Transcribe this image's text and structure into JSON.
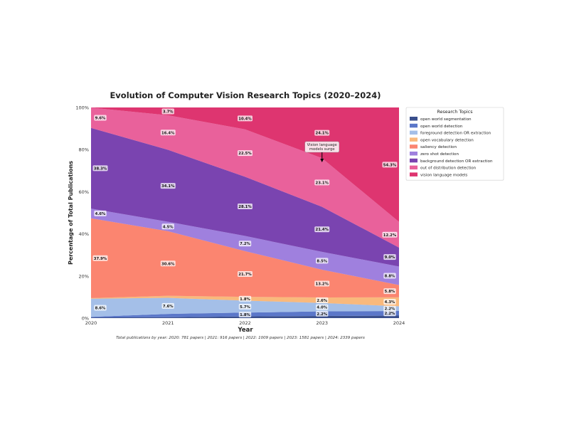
{
  "chart_data": {
    "type": "area",
    "stacked": true,
    "normalized": true,
    "title": "Evolution of Computer Vision Research Topics (2020–2024)",
    "xlabel": "Year",
    "ylabel": "Percentage of Total Publications",
    "x": [
      "2020",
      "2021",
      "2022",
      "2023",
      "2024"
    ],
    "ylim": [
      0,
      100
    ],
    "y_ticks": [
      "0%",
      "20%",
      "40%",
      "60%",
      "80%",
      "100%"
    ],
    "grid": true,
    "legend_title": "Research Topics",
    "legend_position": "outside-right",
    "series": [
      {
        "name": "open world segmentation",
        "color": "#3a4f8c",
        "values": [
          0.3,
          0.4,
          0.8,
          1.0,
          1.2
        ]
      },
      {
        "name": "open world detection",
        "color": "#5b77c9",
        "values": [
          0.3,
          1.6,
          1.8,
          2.2,
          2.2
        ]
      },
      {
        "name": "foreground detection OR extraction",
        "color": "#a4bfe8",
        "values": [
          8.6,
          7.6,
          5.7,
          4.0,
          2.2
        ]
      },
      {
        "name": "open vocabulary detection",
        "color": "#f9b97c",
        "values": [
          0.3,
          1.0,
          1.8,
          2.6,
          4.3
        ]
      },
      {
        "name": "saliency detection",
        "color": "#fb8570",
        "values": [
          37.9,
          30.6,
          21.7,
          13.2,
          5.8
        ]
      },
      {
        "name": "zero shot detection",
        "color": "#9f80de",
        "values": [
          4.6,
          4.5,
          7.2,
          8.5,
          8.8
        ]
      },
      {
        "name": "background detection OR extraction",
        "color": "#7a44b0",
        "values": [
          38.3,
          34.1,
          28.1,
          21.4,
          9.0
        ]
      },
      {
        "name": "out of distribution detection",
        "color": "#e9619b",
        "values": [
          9.6,
          16.4,
          22.5,
          23.1,
          12.2
        ]
      },
      {
        "name": "vision language models",
        "color": "#de3570",
        "values": [
          0.1,
          3.7,
          10.4,
          24.1,
          54.3
        ]
      }
    ],
    "data_labels": [
      {
        "series": 2,
        "x": 0,
        "text": "8.6%"
      },
      {
        "series": 4,
        "x": 0,
        "text": "37.9%"
      },
      {
        "series": 5,
        "x": 0,
        "text": "4.6%"
      },
      {
        "series": 6,
        "x": 0,
        "text": "38.3%"
      },
      {
        "series": 7,
        "x": 0,
        "text": "9.6%"
      },
      {
        "series": 2,
        "x": 1,
        "text": "7.6%"
      },
      {
        "series": 4,
        "x": 1,
        "text": "30.6%"
      },
      {
        "series": 5,
        "x": 1,
        "text": "4.5%"
      },
      {
        "series": 6,
        "x": 1,
        "text": "34.1%"
      },
      {
        "series": 7,
        "x": 1,
        "text": "16.4%"
      },
      {
        "series": 8,
        "x": 1,
        "text": "3.7%"
      },
      {
        "series": 1,
        "x": 2,
        "text": "1.8%"
      },
      {
        "series": 2,
        "x": 2,
        "text": "5.7%"
      },
      {
        "series": 3,
        "x": 2,
        "text": "1.8%"
      },
      {
        "series": 4,
        "x": 2,
        "text": "21.7%"
      },
      {
        "series": 5,
        "x": 2,
        "text": "7.2%"
      },
      {
        "series": 6,
        "x": 2,
        "text": "28.1%"
      },
      {
        "series": 7,
        "x": 2,
        "text": "22.5%"
      },
      {
        "series": 8,
        "x": 2,
        "text": "10.4%"
      },
      {
        "series": 1,
        "x": 3,
        "text": "2.2%"
      },
      {
        "series": 2,
        "x": 3,
        "text": "4.0%"
      },
      {
        "series": 3,
        "x": 3,
        "text": "2.6%"
      },
      {
        "series": 4,
        "x": 3,
        "text": "13.2%"
      },
      {
        "series": 5,
        "x": 3,
        "text": "8.5%"
      },
      {
        "series": 6,
        "x": 3,
        "text": "21.4%"
      },
      {
        "series": 7,
        "x": 3,
        "text": "23.1%"
      },
      {
        "series": 8,
        "x": 3,
        "text": "24.1%"
      },
      {
        "series": 1,
        "x": 4,
        "text": "2.2%"
      },
      {
        "series": 2,
        "x": 4,
        "text": "2.2%"
      },
      {
        "series": 3,
        "x": 4,
        "text": "4.3%"
      },
      {
        "series": 4,
        "x": 4,
        "text": "5.8%"
      },
      {
        "series": 5,
        "x": 4,
        "text": "8.8%"
      },
      {
        "series": 6,
        "x": 4,
        "text": "9.0%"
      },
      {
        "series": 7,
        "x": 4,
        "text": "12.2%"
      },
      {
        "series": 8,
        "x": 4,
        "text": "54.3%"
      }
    ],
    "annotation": {
      "text_lines": [
        "Vision language",
        "models surge"
      ],
      "x": "2023",
      "y": 74
    },
    "footnote": "Total publications by year: 2020: 781 papers | 2021: 916 papers | 2022: 1009 papers | 2023: 1581 papers | 2024: 2339 papers"
  }
}
